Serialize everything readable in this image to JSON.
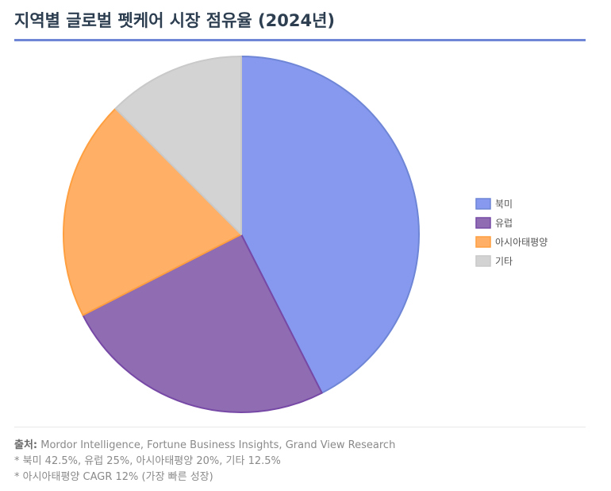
{
  "header": {
    "title": "지역별 글로벌 펫케어 시장 점유율 (2024년)"
  },
  "chart_data": {
    "type": "pie",
    "title": "지역별 글로벌 펫케어 시장 점유율 (2024년)",
    "categories": [
      "북미",
      "유럽",
      "아시아태평양",
      "기타"
    ],
    "values": [
      42.5,
      25,
      20,
      12.5
    ],
    "unit": "%",
    "colors": [
      "#8699ee",
      "#906cb2",
      "#ffb066",
      "#d3d3d3"
    ],
    "border_colors": [
      "#6f86d6",
      "#7749a6",
      "#ff9f40",
      "#c9c9c9"
    ],
    "start_angle_deg": -90,
    "direction": "clockwise",
    "legend_position": "right"
  },
  "footer": {
    "source_label": "출처:",
    "source_text": " Mordor Intelligence, Fortune Business Insights, Grand View Research",
    "note1": "* 북미 42.5%, 유럽 25%, 아시아태평양 20%, 기타 12.5%",
    "note2": "* 아시아태평양 CAGR 12% (가장 빠른 성장)"
  }
}
